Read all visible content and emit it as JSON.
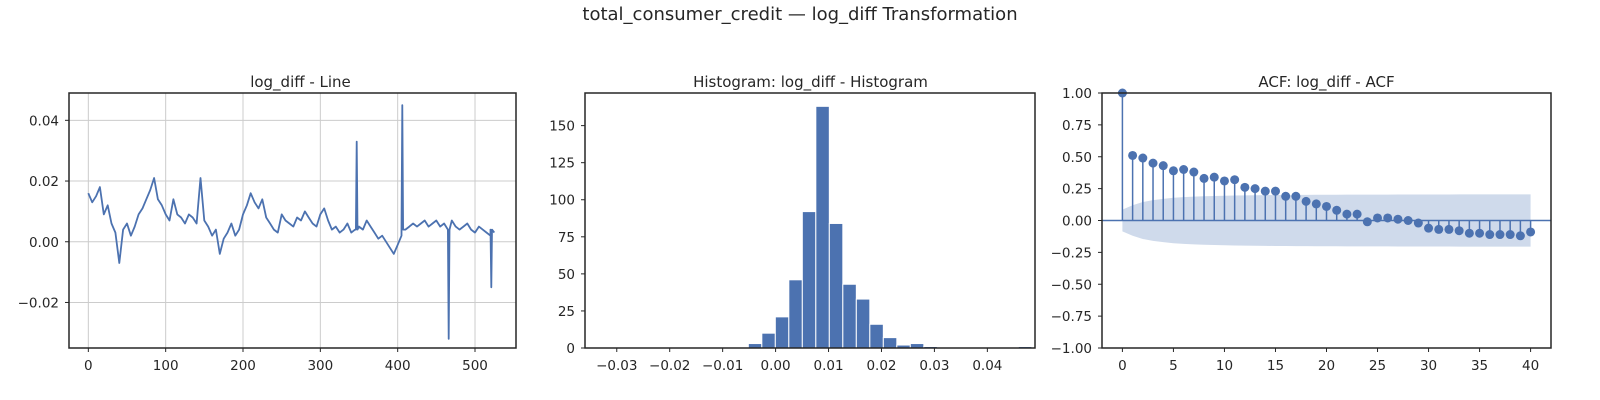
{
  "figure": {
    "suptitle": "total_consumer_credit — log_diff Transformation"
  },
  "colors": {
    "series": "#4c72b0",
    "grid": "#cccccc",
    "axis": "#262626",
    "confidence_band": "#c7d3e8"
  },
  "panels": [
    {
      "title": "log_diff - Line"
    },
    {
      "title": "Histogram: log_diff - Histogram"
    },
    {
      "title": "ACF: log_diff - ACF"
    }
  ],
  "chart_data": [
    {
      "type": "line",
      "title": "log_diff - Line",
      "xlabel": "",
      "ylabel": "",
      "grid": true,
      "xlim": [
        -25,
        553
      ],
      "ylim": [
        -0.035,
        0.049
      ],
      "xticks": [
        0,
        100,
        200,
        300,
        400,
        500
      ],
      "xtick_labels": [
        "0",
        "100",
        "200",
        "300",
        "400",
        "500"
      ],
      "yticks": [
        -0.02,
        0.0,
        0.02,
        0.04
      ],
      "ytick_labels": [
        "−0.02",
        "0.00",
        "0.02",
        "0.04"
      ],
      "series": [
        {
          "x": [
            0,
            5,
            10,
            15,
            20,
            25,
            30,
            35,
            40,
            45,
            50,
            55,
            60,
            65,
            70,
            75,
            80,
            85,
            90,
            95,
            100,
            105,
            110,
            115,
            120,
            125,
            130,
            135,
            140,
            145,
            150,
            155,
            160,
            165,
            170,
            175,
            180,
            185,
            190,
            195,
            200,
            205,
            210,
            215,
            220,
            225,
            230,
            235,
            240,
            245,
            250,
            255,
            260,
            265,
            270,
            275,
            280,
            285,
            290,
            295,
            300,
            305,
            310,
            315,
            320,
            325,
            330,
            335,
            340,
            345,
            350,
            355,
            360,
            365,
            370,
            375,
            380,
            385,
            390,
            395,
            400,
            405,
            410,
            415,
            420,
            425,
            430,
            435,
            440,
            445,
            450,
            455,
            460,
            465,
            470,
            475,
            480,
            485,
            490,
            495,
            500,
            505,
            510,
            515,
            520,
            525
          ],
          "y": [
            0.016,
            0.013,
            0.015,
            0.018,
            0.009,
            0.012,
            0.006,
            0.003,
            -0.007,
            0.004,
            0.006,
            0.002,
            0.005,
            0.009,
            0.011,
            0.014,
            0.017,
            0.021,
            0.014,
            0.012,
            0.009,
            0.007,
            0.014,
            0.009,
            0.008,
            0.006,
            0.009,
            0.008,
            0.006,
            0.021,
            0.007,
            0.005,
            0.002,
            0.004,
            -0.004,
            0.001,
            0.003,
            0.006,
            0.002,
            0.004,
            0.009,
            0.012,
            0.016,
            0.013,
            0.011,
            0.014,
            0.008,
            0.006,
            0.004,
            0.003,
            0.009,
            0.007,
            0.006,
            0.005,
            0.008,
            0.007,
            0.01,
            0.008,
            0.006,
            0.005,
            0.009,
            0.011,
            0.007,
            0.004,
            0.005,
            0.003,
            0.004,
            0.006,
            0.003,
            0.004,
            0.005,
            0.004,
            0.007,
            0.005,
            0.003,
            0.001,
            0.002,
            0.0,
            -0.002,
            -0.004,
            -0.001,
            0.002,
            0.004,
            0.005,
            0.006,
            0.005,
            0.006,
            0.007,
            0.005,
            0.006,
            0.007,
            0.005,
            0.006,
            0.004,
            0.007,
            0.005,
            0.004,
            0.005,
            0.006,
            0.004,
            0.003,
            0.005,
            0.004,
            0.003,
            0.002,
            0.003
          ],
          "spikes": [
            {
              "x": 347,
              "y": 0.033
            },
            {
              "x": 406,
              "y": 0.045
            },
            {
              "x": 466,
              "y": -0.032
            },
            {
              "x": 521,
              "y": -0.015
            }
          ]
        }
      ]
    },
    {
      "type": "histogram",
      "title": "Histogram: log_diff - Histogram",
      "xlabel": "",
      "ylabel": "",
      "grid": false,
      "xlim": [
        -0.036,
        0.049
      ],
      "ylim": [
        0,
        172
      ],
      "bin_width": 0.00255,
      "bin_start": -0.0332,
      "counts": [
        0,
        0,
        0,
        0,
        0,
        0,
        0,
        0,
        0,
        0,
        0,
        3,
        10,
        21,
        46,
        92,
        163,
        84,
        43,
        33,
        16,
        7,
        2,
        3,
        1,
        0,
        0,
        0,
        0,
        0,
        0,
        1,
        0
      ],
      "xticks": [
        -0.03,
        -0.02,
        -0.01,
        0.0,
        0.01,
        0.02,
        0.03,
        0.04
      ],
      "xtick_labels": [
        "−0.03",
        "−0.02",
        "−0.01",
        "0.00",
        "0.01",
        "0.02",
        "0.03",
        "0.04"
      ],
      "yticks": [
        0,
        25,
        50,
        75,
        100,
        125,
        150
      ],
      "ytick_labels": [
        "0",
        "25",
        "50",
        "75",
        "100",
        "125",
        "150"
      ]
    },
    {
      "type": "stem",
      "title": "ACF: log_diff - ACF",
      "xlabel": "",
      "ylabel": "",
      "grid": false,
      "xlim": [
        -2,
        42
      ],
      "ylim": [
        -1.0,
        1.0
      ],
      "lags": [
        0,
        1,
        2,
        3,
        4,
        5,
        6,
        7,
        8,
        9,
        10,
        11,
        12,
        13,
        14,
        15,
        16,
        17,
        18,
        19,
        20,
        21,
        22,
        23,
        24,
        25,
        26,
        27,
        28,
        29,
        30,
        31,
        32,
        33,
        34,
        35,
        36,
        37,
        38,
        39,
        40
      ],
      "values": [
        1.0,
        0.51,
        0.49,
        0.45,
        0.43,
        0.39,
        0.4,
        0.38,
        0.33,
        0.34,
        0.31,
        0.32,
        0.26,
        0.25,
        0.23,
        0.23,
        0.19,
        0.19,
        0.15,
        0.13,
        0.11,
        0.08,
        0.05,
        0.05,
        -0.01,
        0.02,
        0.02,
        0.01,
        0.0,
        -0.02,
        -0.06,
        -0.07,
        -0.07,
        -0.08,
        -0.1,
        -0.1,
        -0.11,
        -0.11,
        -0.11,
        -0.12,
        -0.09
      ],
      "confidence_band": [
        0.085,
        0.12,
        0.145,
        0.16,
        0.17,
        0.178,
        0.183,
        0.187,
        0.19,
        0.192,
        0.194,
        0.196,
        0.197,
        0.198,
        0.199,
        0.2,
        0.2,
        0.201,
        0.201,
        0.202,
        0.202,
        0.202,
        0.203,
        0.203,
        0.203,
        0.203,
        0.203,
        0.204,
        0.204,
        0.204,
        0.204,
        0.204,
        0.204,
        0.205,
        0.205,
        0.205,
        0.205,
        0.205,
        0.205,
        0.205,
        0.205
      ],
      "xticks": [
        0,
        5,
        10,
        15,
        20,
        25,
        30,
        35,
        40
      ],
      "xtick_labels": [
        "0",
        "5",
        "10",
        "15",
        "20",
        "25",
        "30",
        "35",
        "40"
      ],
      "yticks": [
        -1.0,
        -0.75,
        -0.5,
        -0.25,
        0.0,
        0.25,
        0.5,
        0.75,
        1.0
      ],
      "ytick_labels": [
        "−1.00",
        "−0.75",
        "−0.50",
        "−0.25",
        "0.00",
        "0.25",
        "0.50",
        "0.75",
        "1.00"
      ]
    }
  ]
}
